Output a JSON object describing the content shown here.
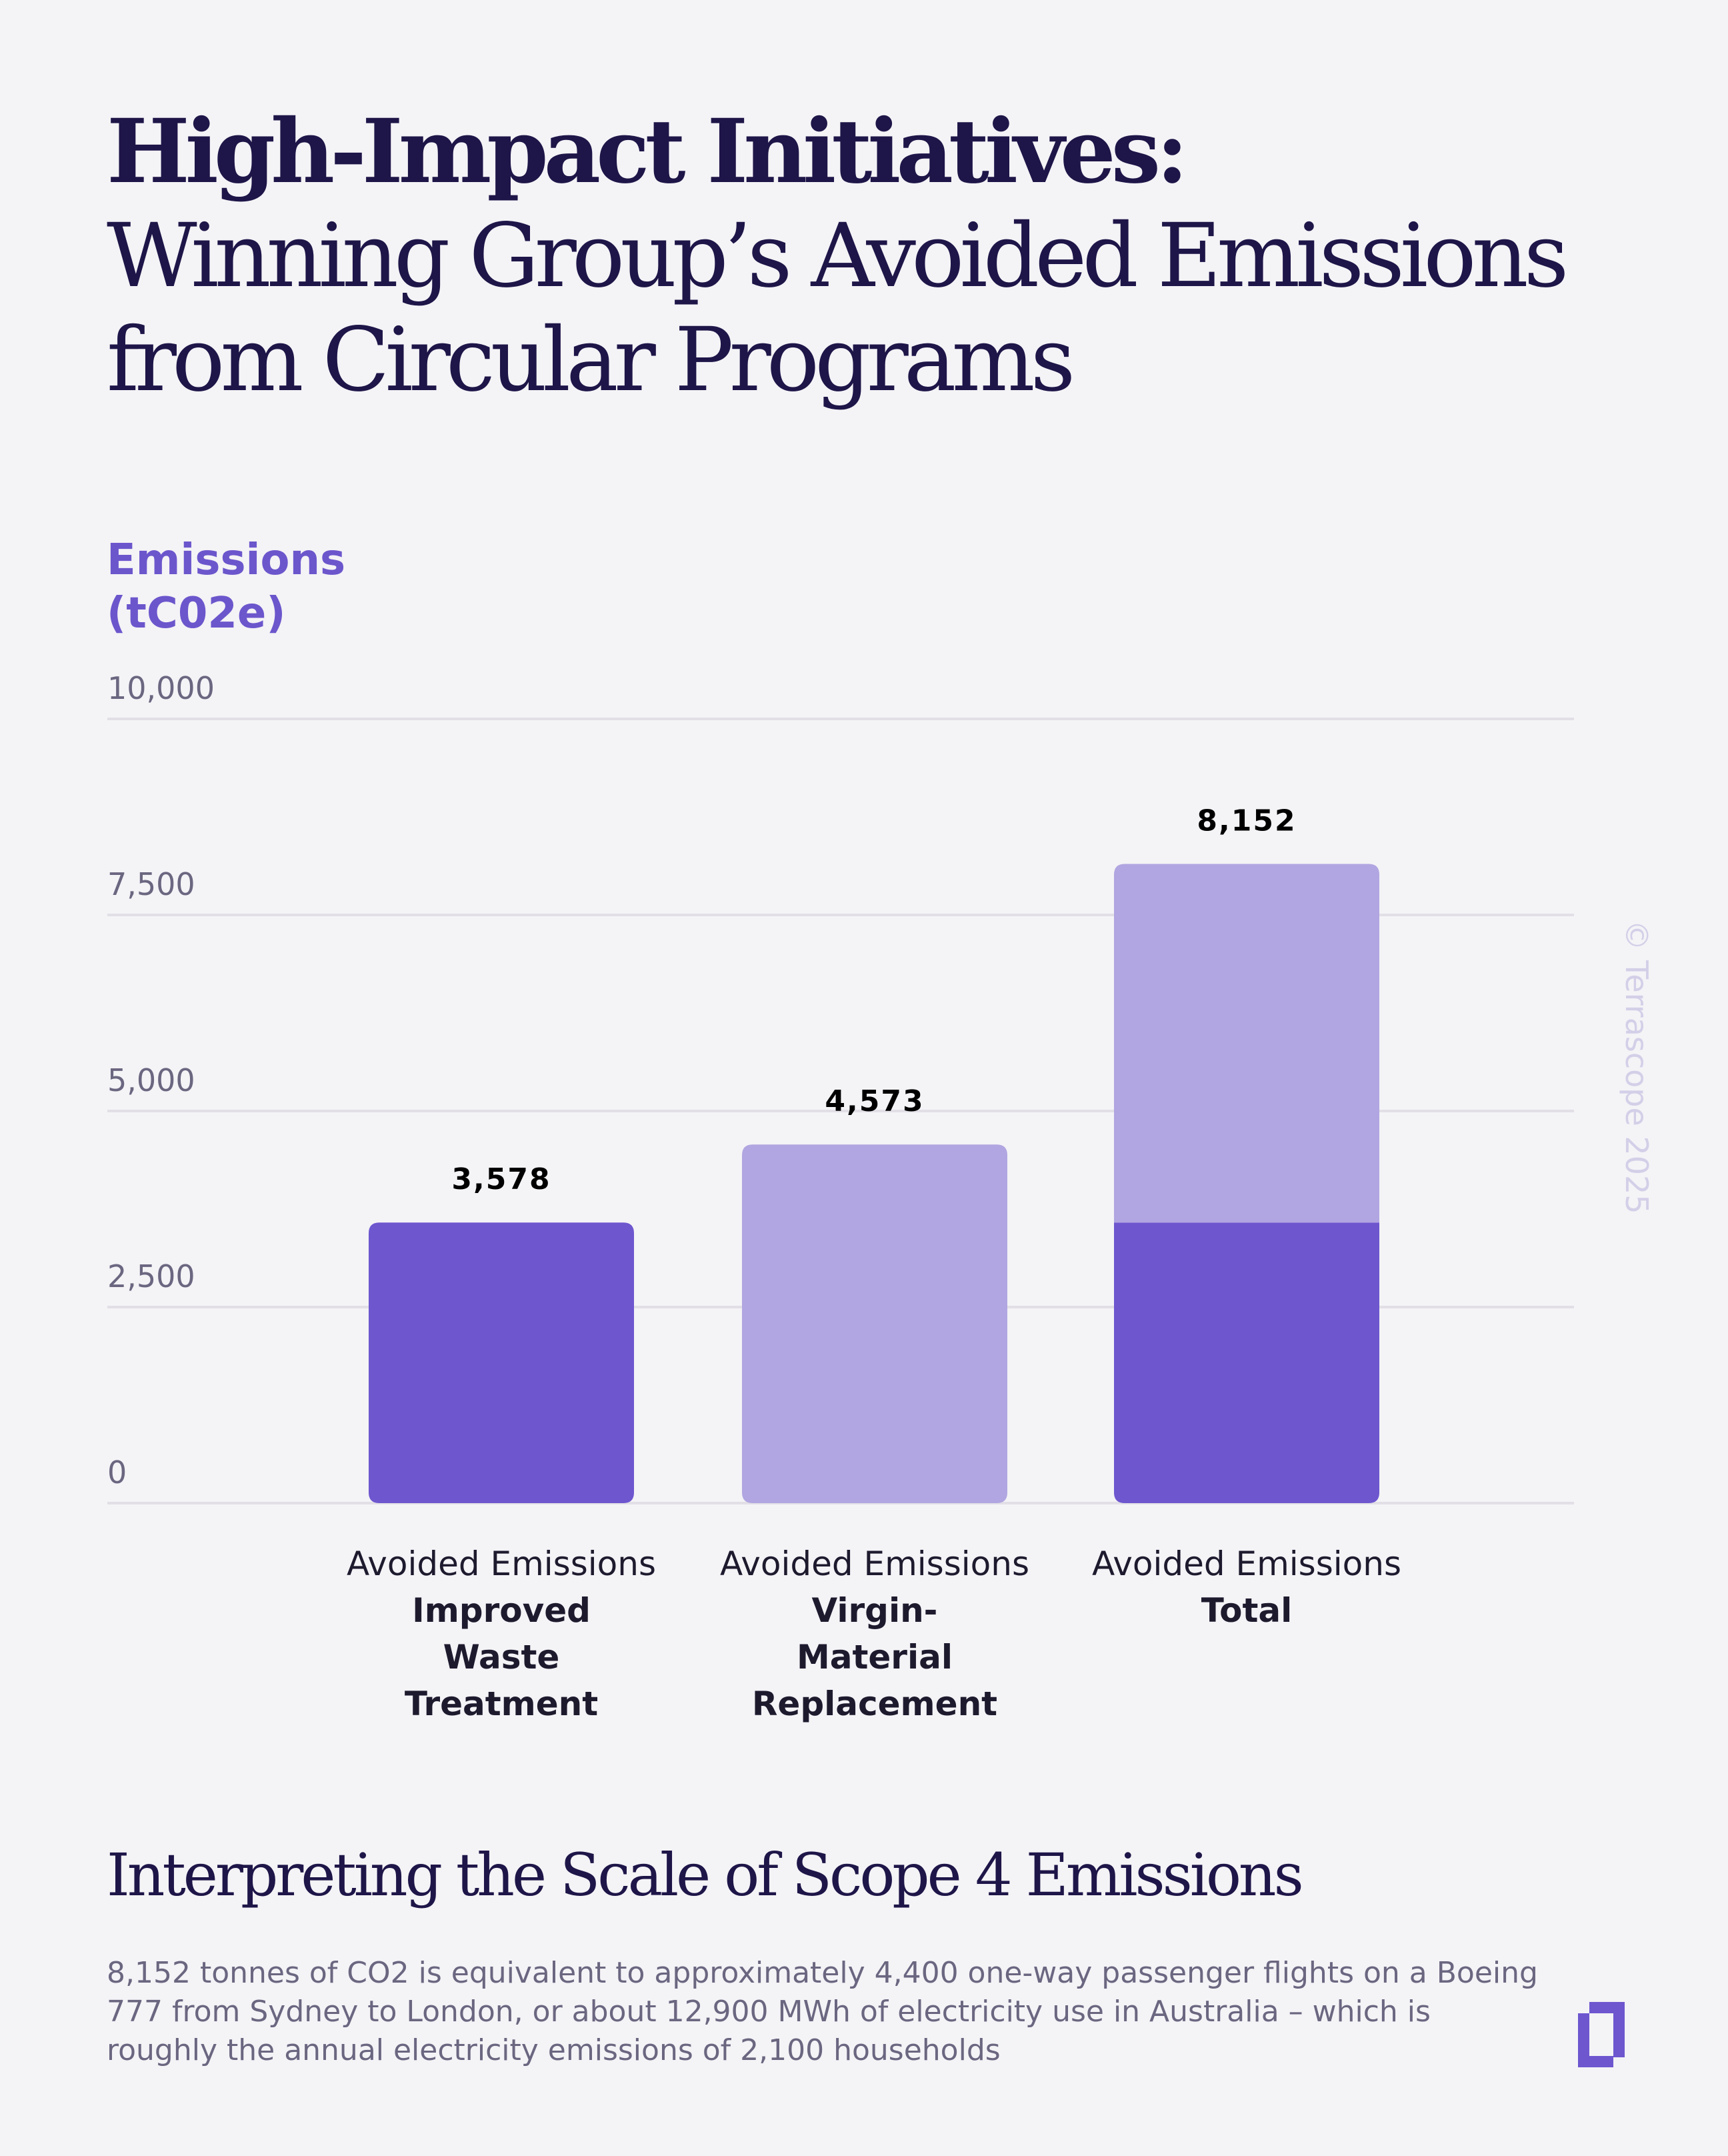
{
  "title": {
    "line1": "High-Impact Initiatives:",
    "line2": "Winning Group’s Avoided Emissions",
    "line3": "from Circular Programs"
  },
  "chart_data": {
    "type": "bar",
    "stacked": true,
    "ylabel": "Emissions (tC02e)",
    "ylim": [
      0,
      10000
    ],
    "yticks": [
      0,
      2500,
      5000,
      7500,
      10000
    ],
    "ytick_labels": [
      "0",
      "2,500",
      "5,000",
      "7,500",
      "10,000"
    ],
    "grid": true,
    "categories": [
      {
        "prefix": "Avoided Emissions",
        "name": "Improved Waste Treatment"
      },
      {
        "prefix": "Avoided Emissions",
        "name": "Virgin-Material Replacement"
      },
      {
        "prefix": "Avoided Emissions",
        "name": "Total"
      }
    ],
    "series": [
      {
        "values": [
          3578,
          0,
          3578
        ],
        "color": "#6e56cf"
      },
      {
        "values": [
          0,
          4573,
          4573
        ],
        "color": "#b1a6e1"
      }
    ],
    "data_labels": [
      "3,578",
      "4,573",
      "8,152"
    ]
  },
  "watermark": "© Terrascope 2025",
  "section": {
    "heading": "Interpreting the Scale of Scope 4 Emissions",
    "body": "8,152 tonnes of CO2 is equivalent to approximately 4,400 one-way passenger flights on a Boeing 777 from Sydney to London, or about 12,900 MWh of electricity use in Australia – which is roughly the annual electricity emissions of 2,100 households"
  },
  "colors": {
    "title": "#1e1548",
    "accent": "#6c56cc",
    "bar_dark": "#6e56cf",
    "bar_light": "#b1a6e1",
    "background": "#f4f3f6"
  }
}
